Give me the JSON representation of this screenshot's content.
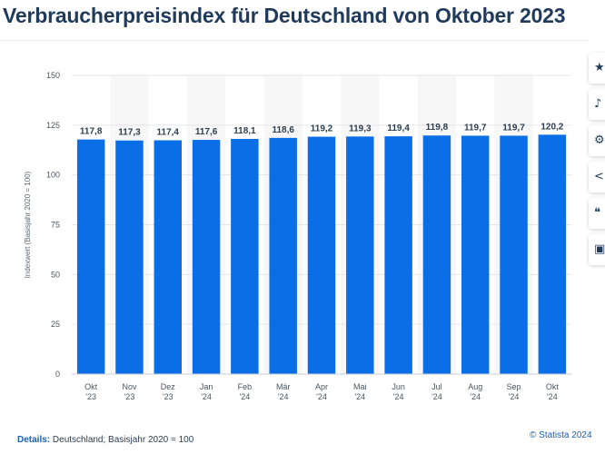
{
  "page": {
    "title": "Verbraucherpreisindex für Deutschland von Oktober 2023"
  },
  "details": {
    "label": "Details:",
    "text": "Deutschland; Basisjahr 2020 = 100"
  },
  "copyright": "© Statista 2024",
  "toolbar": {
    "icons": [
      "star-icon",
      "bell-icon",
      "gear-icon",
      "share-icon",
      "quote-icon",
      "print-icon"
    ]
  },
  "colors": {
    "bar": "#0a6ee6",
    "grid": "#e3e6ea",
    "band": "#f7f7f8"
  },
  "chart_data": {
    "type": "bar",
    "categories": [
      "Okt '23",
      "Nov '23",
      "Dez '23",
      "Jan '24",
      "Feb '24",
      "Mär '24",
      "Apr '24",
      "Mai '24",
      "Jun '24",
      "Jul '24",
      "Aug '24",
      "Sep '24",
      "Okt '24"
    ],
    "category_lines": [
      [
        "Okt",
        "'23"
      ],
      [
        "Nov",
        "'23"
      ],
      [
        "Dez",
        "'23"
      ],
      [
        "Jan",
        "'24"
      ],
      [
        "Feb",
        "'24"
      ],
      [
        "Mär",
        "'24"
      ],
      [
        "Apr",
        "'24"
      ],
      [
        "Mai",
        "'24"
      ],
      [
        "Jun",
        "'24"
      ],
      [
        "Jul",
        "'24"
      ],
      [
        "Aug",
        "'24"
      ],
      [
        "Sep",
        "'24"
      ],
      [
        "Okt",
        "'24"
      ]
    ],
    "values": [
      117.8,
      117.3,
      117.4,
      117.6,
      118.1,
      118.6,
      119.2,
      119.3,
      119.4,
      119.8,
      119.7,
      119.7,
      120.2
    ],
    "value_labels": [
      "117,8",
      "117,3",
      "117,4",
      "117,6",
      "118,1",
      "118,6",
      "119,2",
      "119,3",
      "119,4",
      "119,8",
      "119,7",
      "119,7",
      "120,2"
    ],
    "ylabel": "Indexwert (Basisjahr 2020 = 100)",
    "xlabel": "",
    "ylim": [
      0,
      150
    ],
    "yticks": [
      0,
      25,
      50,
      75,
      100,
      125,
      150
    ],
    "grid": true
  }
}
